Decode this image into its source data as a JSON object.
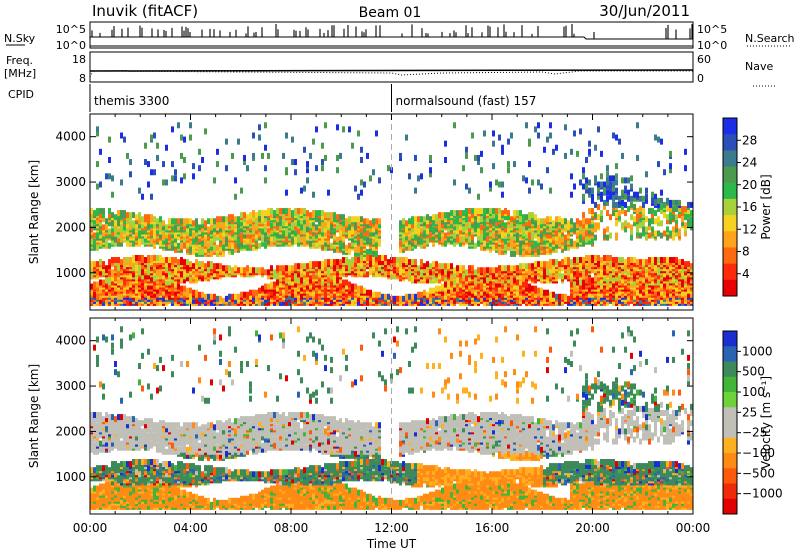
{
  "header": {
    "station": "Inuvik (fitACF)",
    "beam": "Beam 01",
    "date": "30/Jun/2011"
  },
  "sky_panel": {
    "left_label": "N.Sky",
    "left_ticks": [
      "10^5",
      "10^0"
    ],
    "right_ticks": [
      "10^5",
      "10^0"
    ],
    "right_label": "N.Search"
  },
  "freq_panel": {
    "left_label_line1": "Freq.",
    "left_label_line2": "[MHz]",
    "left_ticks": [
      "18",
      "8"
    ],
    "right_ticks": [
      "60",
      "0"
    ],
    "right_label": "Nave"
  },
  "cpid_panel": {
    "label": "CPID",
    "segments": [
      {
        "start_hour": 0,
        "text": "themis 3300"
      },
      {
        "start_hour": 12,
        "text": "normalsound (fast) 157"
      }
    ]
  },
  "chart_data": [
    {
      "type": "heatmap",
      "quantity": "power",
      "ylabel": "Slant Range [km]",
      "xlabel": "",
      "x_ticks": [
        "00:00",
        "04:00",
        "08:00",
        "12:00",
        "16:00",
        "20:00",
        "00:00"
      ],
      "xlim_hours": [
        0,
        24
      ],
      "y_ticks": [
        1000,
        2000,
        3000,
        4000
      ],
      "ylim_km": [
        180,
        4500
      ],
      "colorbar_label": "Power [dB]",
      "colorbar_ticks": [
        "4",
        "8",
        "12",
        "16",
        "20",
        "24",
        "28"
      ],
      "colorbar_colors": [
        "#1c2de6",
        "#2a4fb8",
        "#3c7a8e",
        "#4c9a4c",
        "#2db94a",
        "#a8d23a",
        "#f4d21f",
        "#ffa31a",
        "#ff6a10",
        "#ff2a0a",
        "#e60000"
      ]
    },
    {
      "type": "heatmap",
      "quantity": "velocity",
      "ylabel": "Slant Range [km]",
      "xlabel": "Time UT",
      "x_ticks": [
        "00:00",
        "04:00",
        "08:00",
        "12:00",
        "16:00",
        "20:00",
        "00:00"
      ],
      "xlim_hours": [
        0,
        24
      ],
      "y_ticks": [
        1000,
        2000,
        3000,
        4000
      ],
      "ylim_km": [
        180,
        4500
      ],
      "colorbar_label": "Velocity [m s⁻¹]",
      "colorbar_ticks": [
        "1000",
        "500",
        "100",
        "25",
        "−25",
        "−100",
        "−500",
        "−1000"
      ],
      "colorbar_colors": [
        "#1a2fd0",
        "#2a63b3",
        "#3c8a5a",
        "#43b43a",
        "#6ed23a",
        "#c0c0b8",
        "#c0c0b8",
        "#ffb020",
        "#ff8a14",
        "#ff5a0c",
        "#f02a06",
        "#e00000"
      ]
    }
  ]
}
